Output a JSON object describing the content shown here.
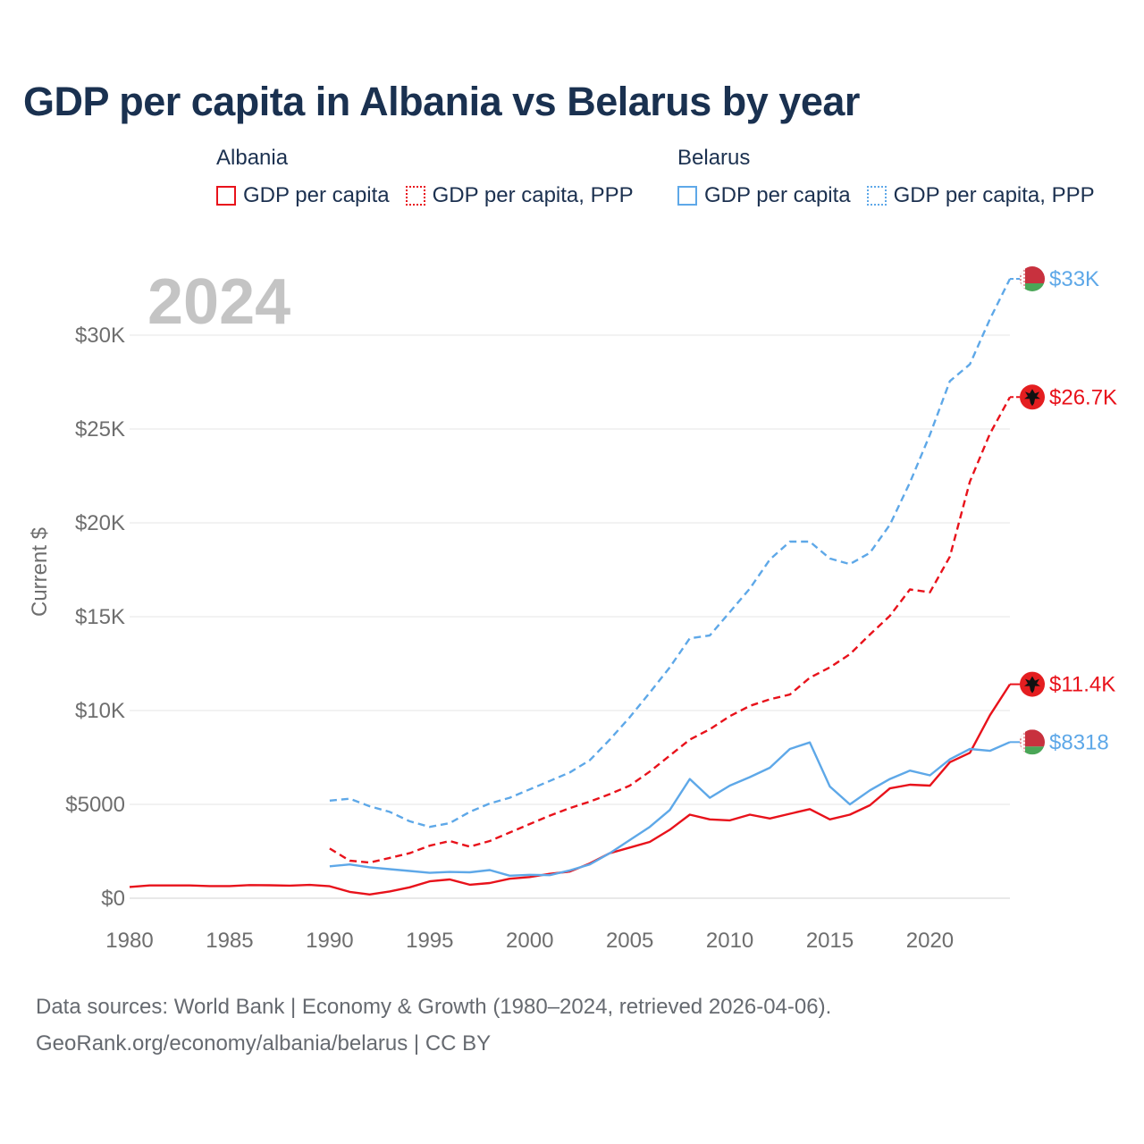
{
  "title": "GDP per capita in Albania vs Belarus by year",
  "legend": {
    "groups": [
      {
        "name": "Albania",
        "color": "#e8121b",
        "items": [
          {
            "label": "GDP per capita",
            "style": "solid"
          },
          {
            "label": "GDP per capita, PPP",
            "style": "dotted"
          }
        ]
      },
      {
        "name": "Belarus",
        "color": "#5ea8e8",
        "items": [
          {
            "label": "GDP per capita",
            "style": "solid"
          },
          {
            "label": "GDP per capita, PPP",
            "style": "dotted"
          }
        ]
      }
    ]
  },
  "chart_data": {
    "type": "line",
    "title": "GDP per capita in Albania vs Belarus by year",
    "year_label": "2024",
    "ylabel": "Current $",
    "xlabel": "",
    "xlim": [
      1980,
      2024
    ],
    "ylim": [
      0,
      33000
    ],
    "grid": true,
    "x_ticks": [
      1980,
      1985,
      1990,
      1995,
      2000,
      2005,
      2010,
      2015,
      2020
    ],
    "y_ticks": [
      {
        "value": 0,
        "label": "$0"
      },
      {
        "value": 5000,
        "label": "$5000"
      },
      {
        "value": 10000,
        "label": "$10K"
      },
      {
        "value": 15000,
        "label": "$15K"
      },
      {
        "value": 20000,
        "label": "$20K"
      },
      {
        "value": 25000,
        "label": "$25K"
      },
      {
        "value": 30000,
        "label": "$30K"
      }
    ],
    "series": [
      {
        "name": "Albania GDP per capita",
        "country": "Albania",
        "color": "#e8121b",
        "dash": "solid",
        "end_label": "$11.4K",
        "x": [
          1980,
          1981,
          1982,
          1983,
          1984,
          1985,
          1986,
          1987,
          1988,
          1989,
          1990,
          1991,
          1992,
          1993,
          1994,
          1995,
          1996,
          1997,
          1998,
          1999,
          2000,
          2001,
          2002,
          2003,
          2004,
          2005,
          2006,
          2007,
          2008,
          2009,
          2010,
          2011,
          2012,
          2013,
          2014,
          2015,
          2016,
          2017,
          2018,
          2019,
          2020,
          2021,
          2022,
          2023,
          2024
        ],
        "values": [
          600,
          680,
          680,
          680,
          650,
          650,
          700,
          690,
          670,
          710,
          640,
          340,
          200,
          360,
          580,
          900,
          1000,
          720,
          810,
          1040,
          1130,
          1300,
          1420,
          1850,
          2400,
          2700,
          3000,
          3650,
          4450,
          4200,
          4150,
          4450,
          4250,
          4500,
          4750,
          4200,
          4450,
          4950,
          5850,
          6050,
          6000,
          7250,
          7750,
          9750,
          11400
        ]
      },
      {
        "name": "Albania GDP per capita, PPP",
        "country": "Albania",
        "color": "#e8121b",
        "dash": "dashed",
        "end_label": "$26.7K",
        "x": [
          1990,
          1991,
          1992,
          1993,
          1994,
          1995,
          1996,
          1997,
          1998,
          1999,
          2000,
          2001,
          2002,
          2003,
          2004,
          2005,
          2006,
          2007,
          2008,
          2009,
          2010,
          2011,
          2012,
          2013,
          2014,
          2015,
          2016,
          2017,
          2018,
          2019,
          2020,
          2021,
          2022,
          2023,
          2024
        ],
        "values": [
          2650,
          2000,
          1900,
          2150,
          2400,
          2800,
          3050,
          2750,
          3050,
          3500,
          3950,
          4400,
          4800,
          5150,
          5550,
          6000,
          6750,
          7600,
          8450,
          9000,
          9700,
          10250,
          10600,
          10850,
          11750,
          12300,
          13000,
          14050,
          15050,
          16450,
          16300,
          18200,
          22200,
          24750,
          26700
        ]
      },
      {
        "name": "Belarus GDP per capita",
        "country": "Belarus",
        "color": "#5ea8e8",
        "dash": "solid",
        "end_label": "$8318",
        "x": [
          1990,
          1991,
          1992,
          1993,
          1994,
          1995,
          1996,
          1997,
          1998,
          1999,
          2000,
          2001,
          2002,
          2003,
          2004,
          2005,
          2006,
          2007,
          2008,
          2009,
          2010,
          2011,
          2012,
          2013,
          2014,
          2015,
          2016,
          2017,
          2018,
          2019,
          2020,
          2021,
          2022,
          2023,
          2024
        ],
        "values": [
          1700,
          1800,
          1650,
          1550,
          1450,
          1350,
          1400,
          1380,
          1500,
          1200,
          1250,
          1230,
          1480,
          1800,
          2400,
          3100,
          3800,
          4700,
          6350,
          5350,
          6000,
          6450,
          6950,
          7950,
          8300,
          5950,
          5000,
          5750,
          6350,
          6800,
          6550,
          7400,
          7950,
          7850,
          8318
        ]
      },
      {
        "name": "Belarus GDP per capita, PPP",
        "country": "Belarus",
        "color": "#5ea8e8",
        "dash": "dashed",
        "end_label": "$33K",
        "x": [
          1990,
          1991,
          1992,
          1993,
          1994,
          1995,
          1996,
          1997,
          1998,
          1999,
          2000,
          2001,
          2002,
          2003,
          2004,
          2005,
          2006,
          2007,
          2008,
          2009,
          2010,
          2011,
          2012,
          2013,
          2014,
          2015,
          2016,
          2017,
          2018,
          2019,
          2020,
          2021,
          2022,
          2023,
          2024
        ],
        "values": [
          5200,
          5300,
          4900,
          4600,
          4100,
          3800,
          4000,
          4600,
          5050,
          5350,
          5800,
          6250,
          6700,
          7350,
          8450,
          9650,
          10950,
          12300,
          13850,
          14000,
          15250,
          16500,
          18050,
          19000,
          19000,
          18100,
          17800,
          18400,
          19900,
          22150,
          24700,
          27550,
          28450,
          30850,
          33000
        ]
      }
    ]
  },
  "footer": {
    "line1": "Data sources: World Bank | Economy & Growth (1980–2024, retrieved 2026-04-06).",
    "line2": "GeoRank.org/economy/albania/belarus | CC BY"
  }
}
